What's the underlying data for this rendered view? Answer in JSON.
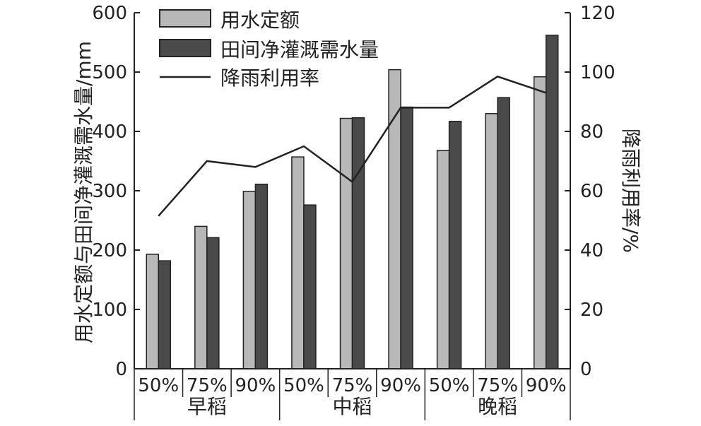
{
  "chart_data": {
    "type": "bar",
    "groups": [
      {
        "label": "早稻",
        "categories": [
          "50%",
          "75%",
          "90%"
        ]
      },
      {
        "label": "中稻",
        "categories": [
          "50%",
          "75%",
          "90%"
        ]
      },
      {
        "label": "晚稻",
        "categories": [
          "50%",
          "75%",
          "90%"
        ]
      }
    ],
    "categories": [
      "50%",
      "75%",
      "90%",
      "50%",
      "75%",
      "90%",
      "50%",
      "75%",
      "90%"
    ],
    "series": [
      {
        "name": "用水定额",
        "type": "bar",
        "axis": "left",
        "color": "#b8b8b8",
        "values": [
          193,
          240,
          299,
          357,
          422,
          504,
          368,
          430,
          492
        ]
      },
      {
        "name": "田间净灌溉需水量",
        "type": "bar",
        "axis": "left",
        "color": "#4a4a4a",
        "values": [
          182,
          221,
          311,
          276,
          423,
          441,
          417,
          457,
          562
        ]
      },
      {
        "name": "降雨利用率",
        "type": "line",
        "axis": "right",
        "color": "#222222",
        "values": [
          51.5,
          70,
          68,
          75,
          63,
          88,
          88,
          98.5,
          93
        ]
      }
    ],
    "ylabel_left": "用水定额与田间净灌溉需水量/mm",
    "ylabel_right": "降雨利用率/%",
    "ylim_left": [
      0,
      600
    ],
    "ylim_right": [
      0,
      120
    ],
    "yticks_left": [
      "0",
      "100",
      "200",
      "300",
      "400",
      "500",
      "600"
    ],
    "yticks_right": [
      "0",
      "20",
      "40",
      "60",
      "80",
      "100",
      "120"
    ],
    "legend_position": "top-left",
    "grid": false
  }
}
